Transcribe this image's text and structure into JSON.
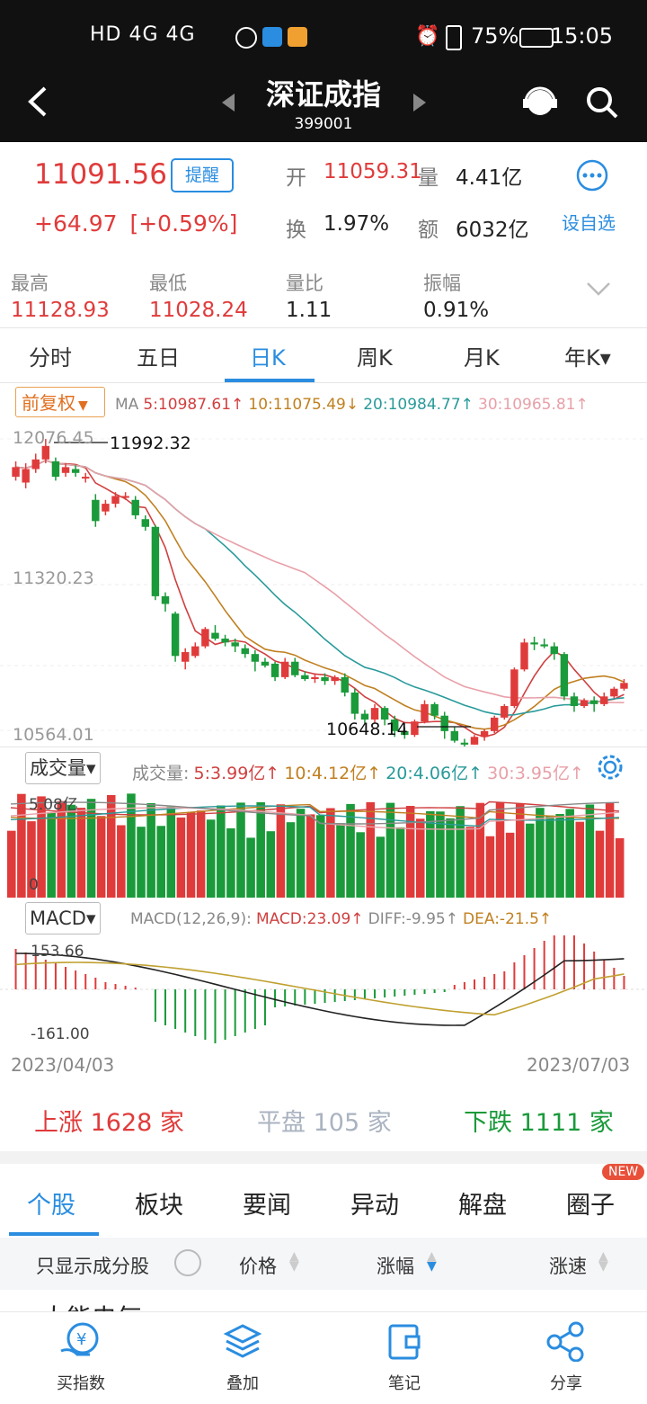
{
  "status": {
    "left": "HD 4G 4G",
    "battery": "75%",
    "time": "15:05"
  },
  "header": {
    "title": "深证成指",
    "code": "399001"
  },
  "quote": {
    "price": "11091.56",
    "remind": "提醒",
    "change": "+64.97",
    "change_pct": "[+0.59%]",
    "open_label": "开",
    "open": "11059.31",
    "vol_label": "量",
    "vol": "4.41亿",
    "turn_label": "换",
    "turn": "1.97%",
    "amt_label": "额",
    "amt": "6032亿",
    "fav_label": "设自选",
    "high_label": "最高",
    "high": "11128.93",
    "low_label": "最低",
    "low": "11028.24",
    "ratio_label": "量比",
    "ratio": "1.11",
    "amp_label": "振幅",
    "amp": "0.91%"
  },
  "ktabs": [
    "分时",
    "五日",
    "日K",
    "周K",
    "月K",
    "年K▾"
  ],
  "ma_bar": {
    "adj": "前复权",
    "ma": "MA",
    "ma5": "5:10987.61↑",
    "ma10": "10:11075.49↓",
    "ma20": "20:10984.77↑",
    "ma30": "30:10965.81↑"
  },
  "price_axis": {
    "top": "12076.45",
    "mid": "11320.23",
    "bottom": "10564.01",
    "max_note": "11992.32",
    "min_note": "10648.14"
  },
  "vol_bar": {
    "name": "成交量▾",
    "label": "成交量:",
    "v5": "5:3.99亿↑",
    "v10": "10:4.12亿↑",
    "v20": "20:4.06亿↑",
    "v30": "30:3.95亿↑",
    "axis_top": "5.08亿",
    "axis_zero": "0"
  },
  "macd_bar": {
    "name": "MACD▾",
    "label": "MACD(12,26,9):",
    "macd": "MACD:23.09↑",
    "diff": "DIFF:-9.95↑",
    "dea": "DEA:-21.5↑",
    "axis_top": "153.66",
    "axis_bottom": "-161.00"
  },
  "dates": {
    "start": "2023/04/03",
    "end": "2023/07/03"
  },
  "breadth": {
    "up_label": "上涨",
    "up": "1628",
    "up_unit": "家",
    "flat_label": "平盘",
    "flat": "105",
    "flat_unit": "家",
    "down_label": "下跌",
    "down": "1111",
    "down_unit": "家"
  },
  "news_tabs": [
    "个股",
    "板块",
    "要闻",
    "异动",
    "解盘",
    "圈子"
  ],
  "new_badge": "NEW",
  "list_header": {
    "only": "只显示成分股",
    "price": "价格",
    "chg": "涨幅",
    "speed": "涨速"
  },
  "partial_row": "大能电气",
  "bottom_nav": [
    "买指数",
    "叠加",
    "笔记",
    "分享"
  ],
  "colors": {
    "up": "#e03b3b",
    "down": "#1a9a3a",
    "accent": "#2a8de0"
  },
  "chart_data": {
    "type": "candlestick",
    "x_range": [
      "2023/04/03",
      "2023/07/03"
    ],
    "ylim": [
      10564.01,
      12076.45
    ],
    "candles": [
      [
        11880,
        11930,
        11960,
        11860
      ],
      [
        11850,
        11920,
        11950,
        11820
      ],
      [
        11920,
        11970,
        12000,
        11900
      ],
      [
        11970,
        12040,
        12076,
        11950
      ],
      [
        11960,
        11880,
        11980,
        11860
      ],
      [
        11900,
        11930,
        11950,
        11880
      ],
      [
        11920,
        11900,
        11940,
        11880
      ],
      [
        11880,
        11880,
        11900,
        11850
      ],
      [
        11760,
        11650,
        11790,
        11620
      ],
      [
        11700,
        11740,
        11760,
        11680
      ],
      [
        11740,
        11780,
        11800,
        11720
      ],
      [
        11780,
        11780,
        11800,
        11760
      ],
      [
        11760,
        11680,
        11780,
        11660
      ],
      [
        11660,
        11620,
        11680,
        11600
      ],
      [
        11620,
        11260,
        11630,
        11240
      ],
      [
        11260,
        11220,
        11280,
        11180
      ],
      [
        11170,
        10950,
        11180,
        10920
      ],
      [
        10920,
        10970,
        10990,
        10880
      ],
      [
        10950,
        11000,
        11020,
        10940
      ],
      [
        11000,
        11090,
        11100,
        10990
      ],
      [
        11070,
        11040,
        11110,
        11030
      ],
      [
        11040,
        11020,
        11060,
        11000
      ],
      [
        11020,
        11000,
        11040,
        10970
      ],
      [
        10990,
        10960,
        11010,
        10940
      ],
      [
        10960,
        10920,
        10980,
        10870
      ],
      [
        10920,
        10900,
        10940,
        10890
      ],
      [
        10910,
        10840,
        10920,
        10820
      ],
      [
        10840,
        10920,
        10940,
        10830
      ],
      [
        10920,
        10850,
        10940,
        10840
      ],
      [
        10850,
        10830,
        10870,
        10820
      ],
      [
        10830,
        10840,
        10860,
        10810
      ],
      [
        10840,
        10820,
        10860,
        10800
      ],
      [
        10820,
        10840,
        10850,
        10800
      ],
      [
        10840,
        10760,
        10860,
        10740
      ],
      [
        10760,
        10650,
        10780,
        10620
      ],
      [
        10650,
        10620,
        10670,
        10600
      ],
      [
        10620,
        10680,
        10700,
        10600
      ],
      [
        10680,
        10620,
        10690,
        10590
      ],
      [
        10620,
        10560,
        10640,
        10530
      ],
      [
        10560,
        10540,
        10580,
        10520
      ],
      [
        10540,
        10610,
        10620,
        10530
      ],
      [
        10610,
        10700,
        10720,
        10600
      ],
      [
        10700,
        10640,
        10710,
        10620
      ],
      [
        10640,
        10560,
        10660,
        10520
      ],
      [
        10560,
        10510,
        10580,
        10500
      ],
      [
        10500,
        10490,
        10520,
        10480
      ],
      [
        10490,
        10530,
        10540,
        10490
      ],
      [
        10530,
        10560,
        10570,
        10510
      ],
      [
        10560,
        10630,
        10640,
        10550
      ],
      [
        10630,
        10690,
        10700,
        10620
      ],
      [
        10690,
        10880,
        10890,
        10680
      ],
      [
        10880,
        11020,
        11040,
        10870
      ],
      [
        11020,
        11010,
        11050,
        10980
      ],
      [
        11010,
        11000,
        11040,
        10990
      ],
      [
        11000,
        10960,
        11020,
        10930
      ],
      [
        10960,
        10740,
        10970,
        10720
      ],
      [
        10740,
        10690,
        10760,
        10660
      ],
      [
        10690,
        10720,
        10730,
        10680
      ],
      [
        10720,
        10700,
        10740,
        10660
      ],
      [
        10700,
        10740,
        10760,
        10690
      ],
      [
        10740,
        10780,
        10790,
        10730
      ],
      [
        10780,
        10810,
        10830,
        10770
      ]
    ]
  }
}
